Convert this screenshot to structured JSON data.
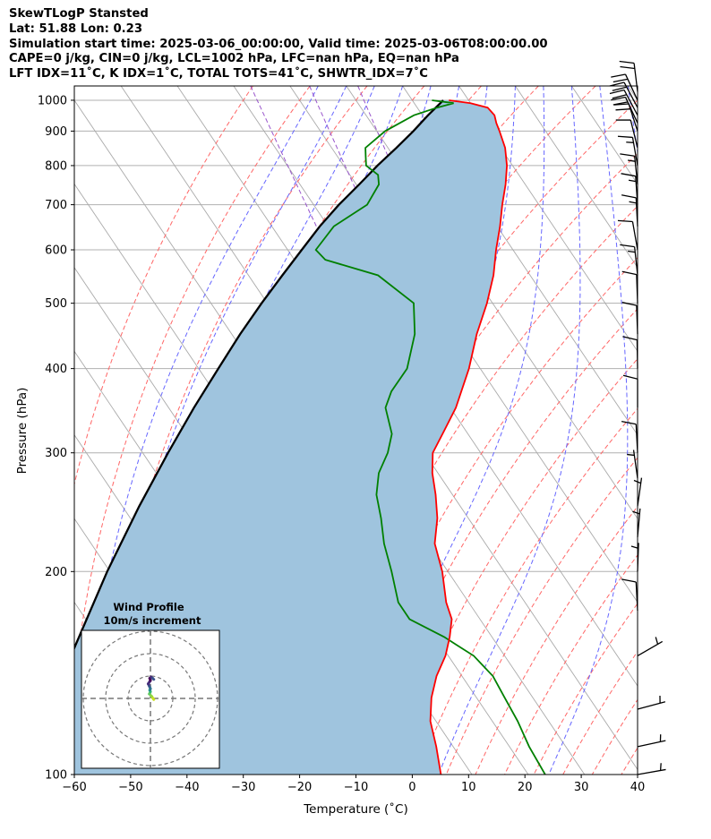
{
  "header": {
    "line1": "SkewTLogP Stansted",
    "line2": "Lat: 51.88   Lon: 0.23",
    "line3": "Simulation start time: 2025-03-06_00:00:00, Valid time: 2025-03-06T08:00:00.00",
    "line4": "CAPE=0 j/kg, CIN=0 j/kg, LCL=1002 hPa, LFC=nan hPa, EQ=nan hPa",
    "line5": "LFT IDX=11˚C, K IDX=1˚C, TOTAL TOTS=41˚C, SHWTR_IDX=7˚C"
  },
  "colors": {
    "temperature": "#ff0000",
    "dewpoint": "#008000",
    "parcel": "#000000",
    "cape_fill": "#9fc4de",
    "dry_adiabat": "#ff6666",
    "moist_adiabat": "#6666ff",
    "isotherm": "#aaaaaa",
    "mixing_ratio": "#9955cc"
  },
  "chart_data": {
    "type": "line",
    "xlabel": "Temperature (˚C)",
    "ylabel": "Pressure (hPa)",
    "xlim": [
      -60,
      40
    ],
    "ylim": [
      1050,
      100
    ],
    "yscale": "log",
    "skew": 35,
    "xticks": [
      "−60",
      "−50",
      "−40",
      "−30",
      "−20",
      "−10",
      "0",
      "10",
      "20",
      "30",
      "40"
    ],
    "xtick_values": [
      -60,
      -50,
      -40,
      -30,
      -20,
      -10,
      0,
      10,
      20,
      30,
      40
    ],
    "yticks": [
      "100",
      "200",
      "300",
      "400",
      "500",
      "600",
      "700",
      "800",
      "900",
      "1000"
    ],
    "ytick_values": [
      100,
      200,
      300,
      400,
      500,
      600,
      700,
      800,
      900,
      1000
    ],
    "grid": true,
    "series": [
      {
        "key": "temperature",
        "values": [
          [
            1000,
            6.5
          ],
          [
            990,
            10.0
          ],
          [
            975,
            12.5
          ],
          [
            950,
            12.8
          ],
          [
            925,
            12.2
          ],
          [
            900,
            11.8
          ],
          [
            850,
            10.8
          ],
          [
            800,
            9.0
          ],
          [
            750,
            6.5
          ],
          [
            700,
            3.5
          ],
          [
            650,
            0.5
          ],
          [
            600,
            -3.0
          ],
          [
            550,
            -6.5
          ],
          [
            500,
            -11.0
          ],
          [
            450,
            -16.5
          ],
          [
            400,
            -22.0
          ],
          [
            350,
            -29.0
          ],
          [
            320,
            -34.5
          ],
          [
            300,
            -38.5
          ],
          [
            280,
            -41.0
          ],
          [
            260,
            -43.0
          ],
          [
            240,
            -45.5
          ],
          [
            220,
            -49.0
          ],
          [
            200,
            -51.0
          ],
          [
            180,
            -54.0
          ],
          [
            170,
            -55.0
          ],
          [
            160,
            -57.5
          ],
          [
            150,
            -60.5
          ],
          [
            140,
            -64.5
          ],
          [
            130,
            -68.0
          ],
          [
            120,
            -71.0
          ],
          [
            110,
            -73.0
          ],
          [
            100,
            -75.5
          ]
        ]
      },
      {
        "key": "dewpoint",
        "values": [
          [
            1000,
            3.5
          ],
          [
            990,
            7.0
          ],
          [
            975,
            3.5
          ],
          [
            950,
            -1.5
          ],
          [
            900,
            -8.5
          ],
          [
            850,
            -14.0
          ],
          [
            825,
            -15.0
          ],
          [
            800,
            -16.0
          ],
          [
            775,
            -15.0
          ],
          [
            750,
            -16.0
          ],
          [
            700,
            -20.5
          ],
          [
            650,
            -29.0
          ],
          [
            600,
            -35.0
          ],
          [
            580,
            -34.5
          ],
          [
            550,
            -27.0
          ],
          [
            500,
            -24.0
          ],
          [
            450,
            -27.5
          ],
          [
            400,
            -33.0
          ],
          [
            370,
            -38.5
          ],
          [
            350,
            -41.5
          ],
          [
            320,
            -43.5
          ],
          [
            300,
            -46.5
          ],
          [
            280,
            -50.5
          ],
          [
            260,
            -53.5
          ],
          [
            240,
            -55.5
          ],
          [
            220,
            -58.0
          ],
          [
            200,
            -60.0
          ],
          [
            180,
            -62.5
          ],
          [
            170,
            -62.5
          ],
          [
            160,
            -58.5
          ],
          [
            150,
            -55.5
          ],
          [
            140,
            -54.5
          ],
          [
            130,
            -55.0
          ],
          [
            120,
            -55.5
          ],
          [
            110,
            -56.5
          ],
          [
            100,
            -57.0
          ]
        ]
      },
      {
        "key": "parcel",
        "values": [
          [
            1000,
            5.5
          ],
          [
            950,
            1.0
          ],
          [
            900,
            -3.5
          ],
          [
            850,
            -8.5
          ],
          [
            800,
            -14.0
          ],
          [
            750,
            -19.5
          ],
          [
            700,
            -25.5
          ],
          [
            650,
            -31.5
          ],
          [
            600,
            -37.5
          ],
          [
            550,
            -44.0
          ],
          [
            500,
            -51.0
          ],
          [
            450,
            -58.5
          ],
          [
            400,
            -66.5
          ],
          [
            350,
            -75.5
          ],
          [
            300,
            -85.5
          ],
          [
            250,
            -97.0
          ],
          [
            200,
            -110.5
          ],
          [
            150,
            -127.0
          ],
          [
            125,
            -136.5
          ],
          [
            100,
            -148.0
          ]
        ]
      }
    ],
    "wind_barbs": [
      {
        "p": 1030,
        "flags": 0,
        "full": 2,
        "half": 0,
        "angle": -7
      },
      {
        "p": 1000,
        "flags": 0,
        "full": 2,
        "half": 0,
        "angle": -25
      },
      {
        "p": 975,
        "flags": 0,
        "full": 2,
        "half": 0,
        "angle": -28
      },
      {
        "p": 950,
        "flags": 0,
        "full": 2,
        "half": 0,
        "angle": -28
      },
      {
        "p": 925,
        "flags": 0,
        "full": 2,
        "half": 0,
        "angle": -25
      },
      {
        "p": 900,
        "flags": 0,
        "full": 2,
        "half": 0,
        "angle": -18
      },
      {
        "p": 850,
        "flags": 0,
        "full": 1,
        "half": 0,
        "angle": -14
      },
      {
        "p": 800,
        "flags": 0,
        "full": 1,
        "half": 1,
        "angle": -10
      },
      {
        "p": 750,
        "flags": 0,
        "full": 1,
        "half": 1,
        "angle": -6
      },
      {
        "p": 700,
        "flags": 0,
        "full": 1,
        "half": 1,
        "angle": -4
      },
      {
        "p": 650,
        "flags": 0,
        "full": 1,
        "half": 1,
        "angle": -3
      },
      {
        "p": 600,
        "flags": 0,
        "full": 1,
        "half": 0,
        "angle": -10
      },
      {
        "p": 550,
        "flags": 0,
        "full": 1,
        "half": 1,
        "angle": -6
      },
      {
        "p": 500,
        "flags": 0,
        "full": 1,
        "half": 0,
        "angle": -2
      },
      {
        "p": 450,
        "flags": 0,
        "full": 1,
        "half": 0,
        "angle": -2
      },
      {
        "p": 400,
        "flags": 0,
        "full": 1,
        "half": 0,
        "angle": -1
      },
      {
        "p": 350,
        "flags": 0,
        "full": 1,
        "half": 0,
        "angle": 0
      },
      {
        "p": 300,
        "flags": 0,
        "full": 1,
        "half": 0,
        "angle": -3
      },
      {
        "p": 275,
        "flags": 0,
        "full": 0,
        "half": 1,
        "angle": -8
      },
      {
        "p": 250,
        "flags": 0,
        "full": 0,
        "half": 1,
        "angle": 8
      },
      {
        "p": 225,
        "flags": 0,
        "full": 0,
        "half": 1,
        "angle": 5
      },
      {
        "p": 200,
        "flags": 0,
        "full": 0,
        "half": 1,
        "angle": 2
      },
      {
        "p": 175,
        "flags": 0,
        "full": 1,
        "half": 0,
        "angle": -3
      },
      {
        "p": 150,
        "flags": 0,
        "full": 0,
        "half": 1,
        "angle": 60
      },
      {
        "p": 125,
        "flags": 0,
        "full": 0,
        "half": 1,
        "angle": 75
      },
      {
        "p": 110,
        "flags": 0,
        "full": 0,
        "half": 1,
        "angle": 78
      },
      {
        "p": 100,
        "flags": 0,
        "full": 0,
        "half": 1,
        "angle": 80
      }
    ],
    "hodograph": {
      "title": "Wind Profile",
      "subtitle": "10m/s increment",
      "ring_step": 10,
      "points": [
        [
          1.5,
          -0.5
        ],
        [
          0.5,
          1.0
        ],
        [
          -0.5,
          2.0
        ],
        [
          0.0,
          3.0
        ],
        [
          -0.3,
          3.7
        ],
        [
          0.0,
          4.3
        ],
        [
          -0.5,
          5.5
        ],
        [
          -1.0,
          6.5
        ],
        [
          0.0,
          8.0
        ],
        [
          -0.3,
          9.0
        ],
        [
          0.3,
          9.5
        ],
        [
          1.0,
          9.0
        ],
        [
          1.5,
          8.5
        ]
      ]
    }
  }
}
